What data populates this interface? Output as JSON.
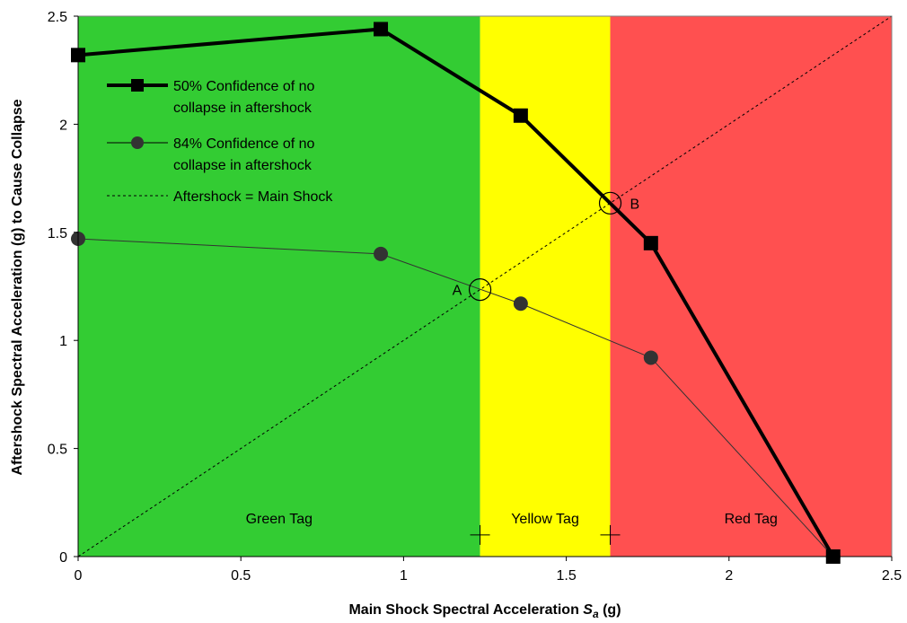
{
  "chart_data": {
    "type": "line",
    "xlabel_main": "Main Shock Spectral Acceleration ",
    "xlabel_symbol": "S",
    "xlabel_subscript": "a",
    "xlabel_unit": " (g)",
    "ylabel": "Aftershock Spectral Acceleration (g) to Cause Collapse",
    "xlim": [
      0,
      2.5
    ],
    "ylim": [
      0,
      2.5
    ],
    "x_ticks": [
      "0",
      "0.5",
      "1",
      "1.5",
      "2",
      "2.5"
    ],
    "y_ticks": [
      "0",
      "0.5",
      "1",
      "1.5",
      "2",
      "2.5"
    ],
    "grid": false,
    "legend_position": "top-left",
    "zones": [
      {
        "label": "Green Tag",
        "x_start": 0,
        "x_end": 1.235,
        "color": "#33cc33"
      },
      {
        "label": "Yellow Tag",
        "x_start": 1.235,
        "x_end": 1.635,
        "color": "#ffff00"
      },
      {
        "label": "Red Tag",
        "x_start": 1.635,
        "x_end": 2.5,
        "color": "#ff5050"
      }
    ],
    "series": [
      {
        "name": "50% Confidence of no collapse in aftershock",
        "legend_lines": [
          "50% Confidence of no",
          "collapse in aftershock"
        ],
        "marker": "square",
        "x": [
          0,
          0.93,
          1.36,
          1.76,
          2.32
        ],
        "y": [
          2.32,
          2.44,
          2.04,
          1.45,
          0
        ]
      },
      {
        "name": "84% Confidence of no collapse in aftershock",
        "legend_lines": [
          "84% Confidence of no",
          "collapse in aftershock"
        ],
        "marker": "circle",
        "x": [
          0,
          0.93,
          1.36,
          1.76,
          2.32
        ],
        "y": [
          1.47,
          1.4,
          1.17,
          0.92,
          0
        ]
      },
      {
        "name": "Aftershock = Main Shock",
        "legend_lines": [
          "Aftershock = Main Shock"
        ],
        "marker": "none",
        "x": [
          0,
          2.5
        ],
        "y": [
          0,
          2.5
        ]
      }
    ],
    "annotations": [
      {
        "label": "A",
        "x": 1.235,
        "y": 1.235
      },
      {
        "label": "B",
        "x": 1.635,
        "y": 1.635
      }
    ],
    "cross_markers": [
      {
        "x": 1.235,
        "y": 0.1
      },
      {
        "x": 1.635,
        "y": 0.1
      }
    ]
  }
}
